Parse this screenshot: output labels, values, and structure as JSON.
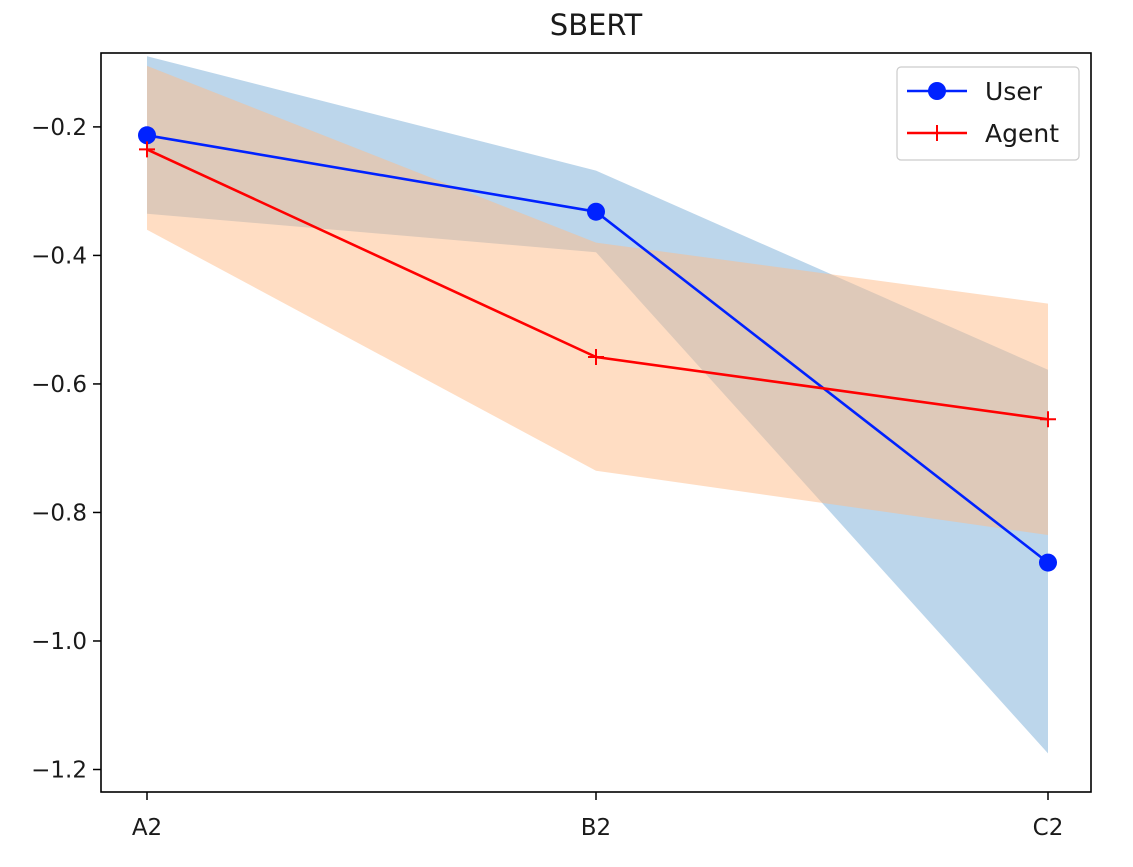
{
  "chart_data": {
    "type": "line",
    "title": "SBERT",
    "xlabel": "",
    "ylabel": "",
    "categories": [
      "A2",
      "B2",
      "C2"
    ],
    "ylim": [
      -1.235,
      -0.085
    ],
    "yticks": [
      -1.2,
      -1.0,
      -0.8,
      -0.6,
      -0.4,
      -0.2
    ],
    "ytick_labels": [
      "−1.2",
      "−1.0",
      "−0.8",
      "−0.6",
      "−0.4",
      "−0.2"
    ],
    "grid": false,
    "legend_position": "top-right",
    "series": [
      {
        "name": "User",
        "values": [
          -0.213,
          -0.332,
          -0.878
        ],
        "color": "#0022ff",
        "marker": "circle",
        "band_lower": [
          -0.335,
          -0.395,
          -1.175
        ],
        "band_upper": [
          -0.09,
          -0.268,
          -0.578
        ],
        "band_color": "#7fb1d8"
      },
      {
        "name": "Agent",
        "values": [
          -0.235,
          -0.558,
          -0.655
        ],
        "color": "#ff0000",
        "marker": "plus",
        "band_lower": [
          -0.36,
          -0.735,
          -0.835
        ],
        "band_upper": [
          -0.105,
          -0.38,
          -0.475
        ],
        "band_color": "#ffbb88"
      }
    ]
  }
}
